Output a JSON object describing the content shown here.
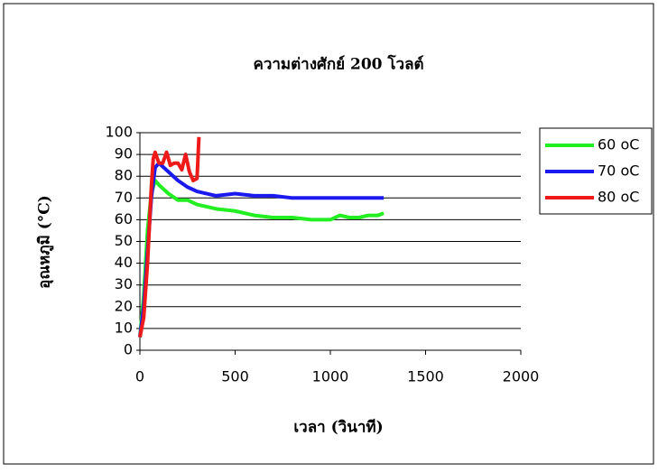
{
  "chart_data": {
    "type": "line",
    "title": "ความต่างศักย์ 200 โวลต์",
    "x_label": "เวลา (วินาที)",
    "y_label": "อุณหภูมิ (°C)",
    "xlim": [
      0,
      2000
    ],
    "xticks": [
      0,
      500,
      1000,
      1500,
      2000
    ],
    "ylim": [
      0,
      100
    ],
    "yticks": [
      0,
      10,
      20,
      30,
      40,
      50,
      60,
      70,
      80,
      90,
      100
    ],
    "grid": true,
    "legend": "upper right",
    "series": [
      {
        "name": "60 oC",
        "color": "#22ee22",
        "x": [
          0,
          20,
          40,
          60,
          80,
          100,
          150,
          200,
          250,
          300,
          400,
          500,
          600,
          700,
          800,
          900,
          1000,
          1050,
          1100,
          1150,
          1200,
          1250,
          1280
        ],
        "values": [
          6,
          25,
          55,
          72,
          78,
          76,
          72,
          69,
          69,
          67,
          65,
          64,
          62,
          61,
          61,
          60,
          60,
          62,
          61,
          61,
          62,
          62,
          63
        ]
      },
      {
        "name": "70 oC",
        "color": "#1a1aee",
        "x": [
          0,
          20,
          40,
          60,
          80,
          100,
          150,
          200,
          250,
          300,
          400,
          500,
          600,
          700,
          800,
          900,
          1000,
          1100,
          1200,
          1280
        ],
        "values": [
          6,
          20,
          45,
          70,
          84,
          86,
          82,
          78,
          75,
          73,
          71,
          72,
          71,
          71,
          70,
          70,
          70,
          70,
          70,
          70
        ]
      },
      {
        "name": "80 oC",
        "color": "#ee1a1a",
        "x": [
          0,
          20,
          40,
          60,
          70,
          80,
          100,
          120,
          140,
          160,
          180,
          200,
          220,
          240,
          260,
          280,
          300,
          310
        ],
        "values": [
          6,
          15,
          40,
          75,
          88,
          91,
          86,
          86,
          91,
          85,
          86,
          86,
          83,
          90,
          82,
          78,
          79,
          98
        ]
      }
    ]
  }
}
